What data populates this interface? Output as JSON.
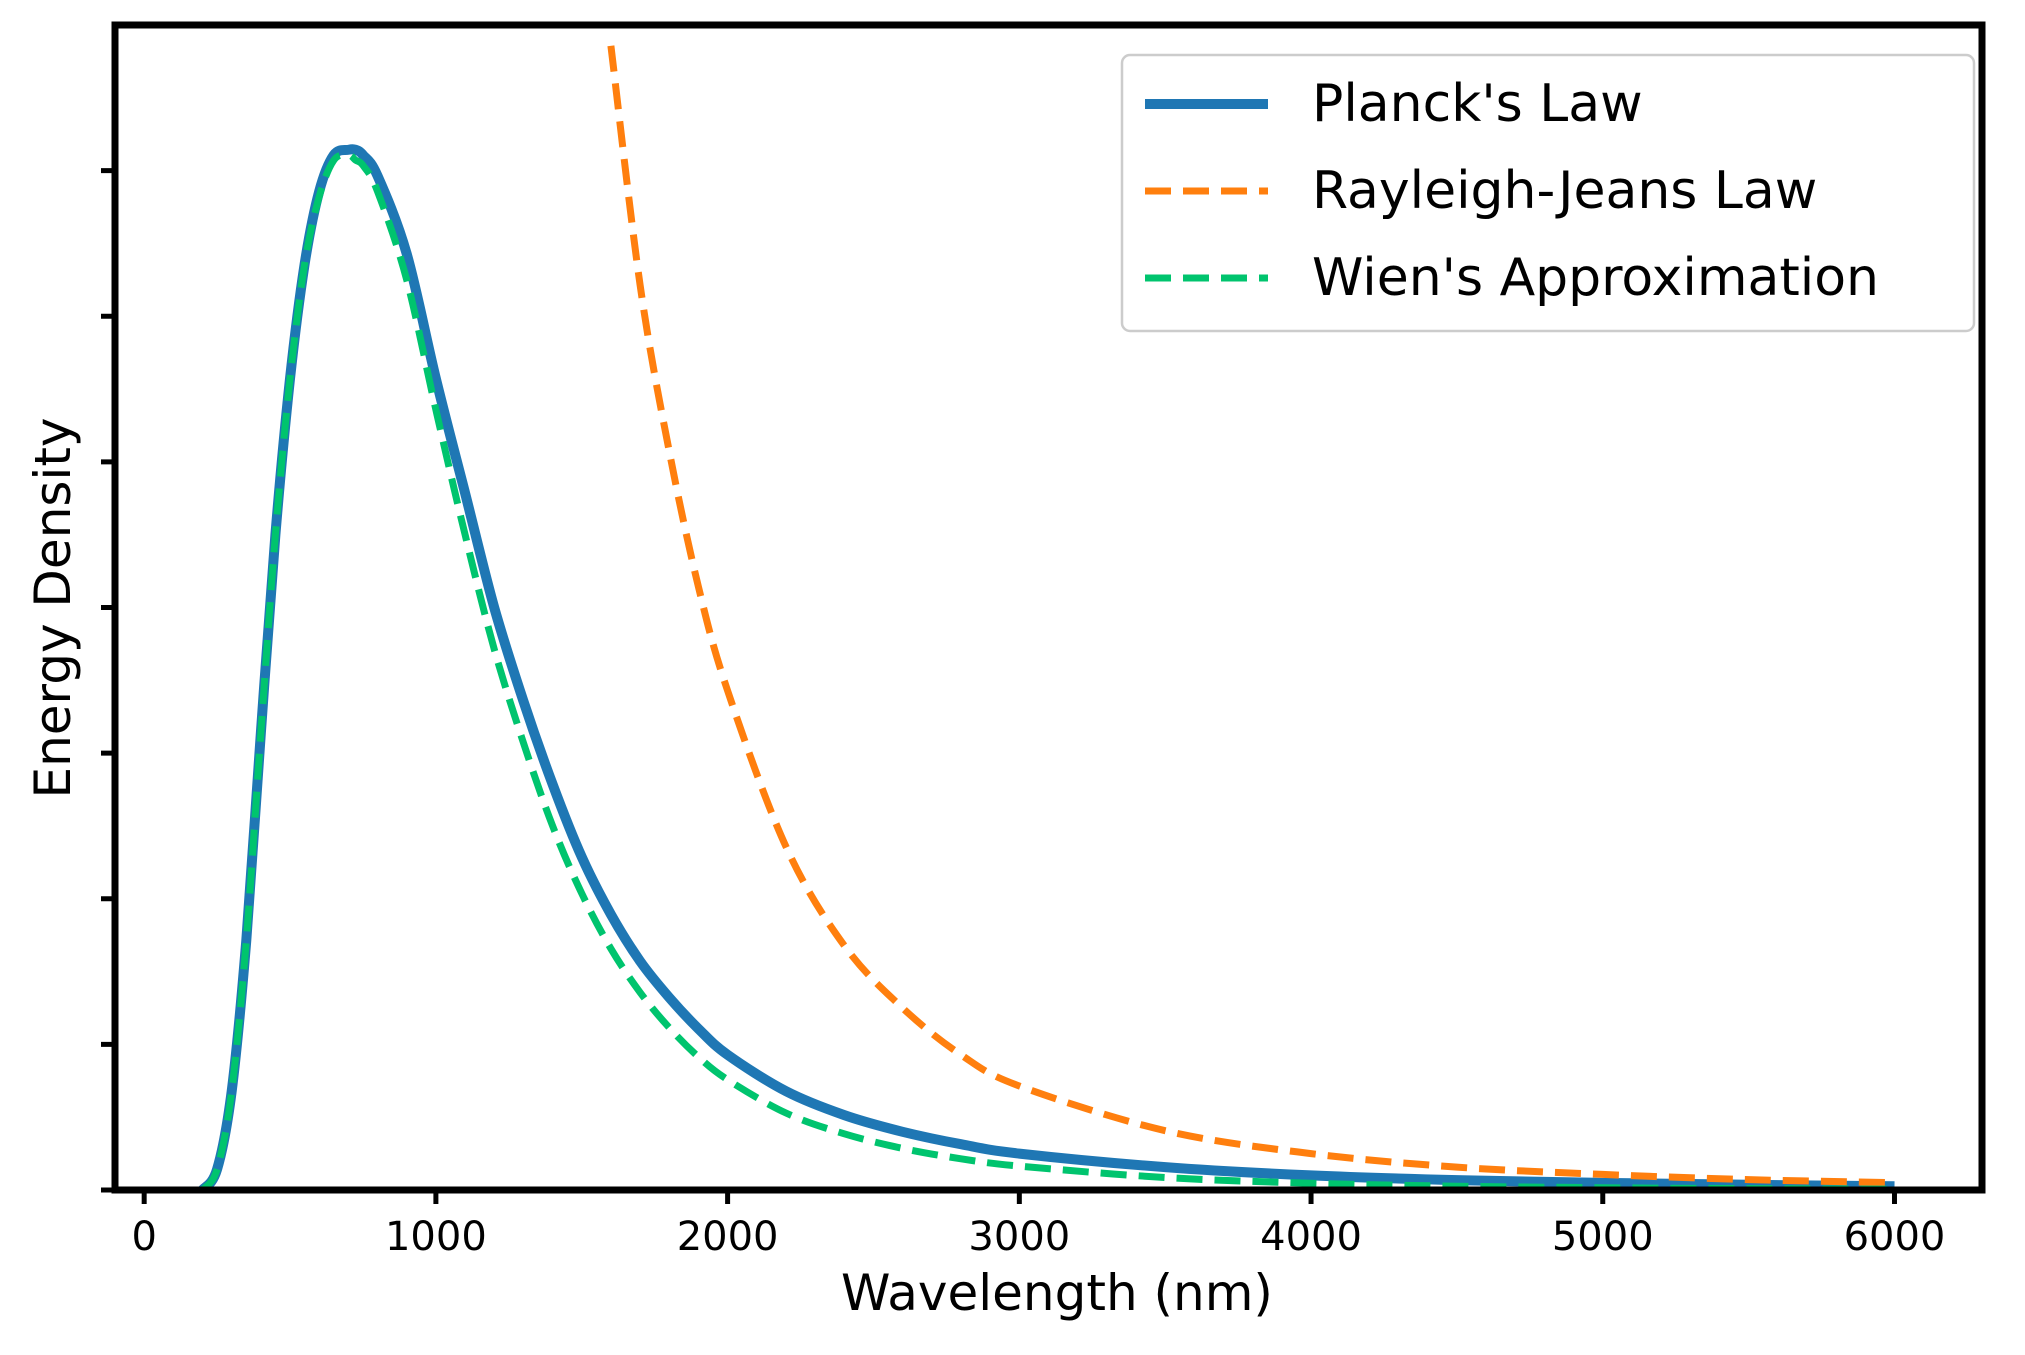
{
  "chart_data": {
    "type": "line",
    "title": "",
    "xlabel": "Wavelength (nm)",
    "ylabel": "Energy Density",
    "xlim": [
      -100,
      6300
    ],
    "ylim": [
      0,
      1.12
    ],
    "x_ticks": [
      0,
      1000,
      2000,
      3000,
      4000,
      5000,
      6000
    ],
    "x_tick_labels": [
      "0",
      "1000",
      "2000",
      "3000",
      "4000",
      "5000",
      "6000"
    ],
    "y_ticks": [
      0,
      0.14,
      0.28,
      0.42,
      0.56,
      0.7,
      0.84,
      0.98
    ],
    "y_tick_labels": [
      "",
      "",
      "",
      "",
      "",
      "",
      "",
      ""
    ],
    "grid": false,
    "legend_position": "top-right",
    "x": [
      200,
      250,
      300,
      350,
      400,
      450,
      500,
      550,
      600,
      650,
      700,
      725,
      750,
      800,
      900,
      1000,
      1100,
      1200,
      1300,
      1400,
      1500,
      1600,
      1700,
      1800,
      1900,
      2000,
      2200,
      2400,
      2600,
      2800,
      3000,
      3500,
      4000,
      4500,
      5000,
      5500,
      6000
    ],
    "series": [
      {
        "name": "Planck's Law",
        "color": "#1f77b4",
        "style": "solid",
        "values": [
          0.0,
          0.02,
          0.095,
          0.24,
          0.44,
          0.63,
          0.78,
          0.89,
          0.96,
          0.995,
          1.0,
          1.0,
          0.995,
          0.975,
          0.9,
          0.78,
          0.67,
          0.56,
          0.47,
          0.39,
          0.32,
          0.265,
          0.22,
          0.185,
          0.155,
          0.13,
          0.095,
          0.072,
          0.056,
          0.044,
          0.035,
          0.022,
          0.014,
          0.0095,
          0.0068,
          0.005,
          0.0037
        ]
      },
      {
        "name": "Rayleigh-Jeans Law",
        "color": "#ff7f0e",
        "style": "dashed",
        "values": [
          null,
          null,
          null,
          null,
          null,
          null,
          null,
          null,
          null,
          null,
          null,
          null,
          null,
          null,
          null,
          null,
          null,
          null,
          null,
          null,
          null,
          1.1,
          0.87,
          0.71,
          0.58,
          0.48,
          0.33,
          0.235,
          0.175,
          0.13,
          0.1,
          0.057,
          0.035,
          0.022,
          0.015,
          0.01,
          0.007
        ]
      },
      {
        "name": "Wien's Approximation",
        "color": "#00c46e",
        "style": "dashed",
        "values": [
          0.0,
          0.02,
          0.095,
          0.24,
          0.44,
          0.63,
          0.78,
          0.89,
          0.955,
          0.99,
          0.995,
          0.99,
          0.985,
          0.96,
          0.875,
          0.75,
          0.63,
          0.52,
          0.43,
          0.35,
          0.285,
          0.232,
          0.19,
          0.156,
          0.128,
          0.106,
          0.074,
          0.054,
          0.04,
          0.03,
          0.023,
          0.012,
          0.0065,
          0.0037,
          0.0022,
          0.0013,
          0.0008
        ]
      }
    ]
  }
}
